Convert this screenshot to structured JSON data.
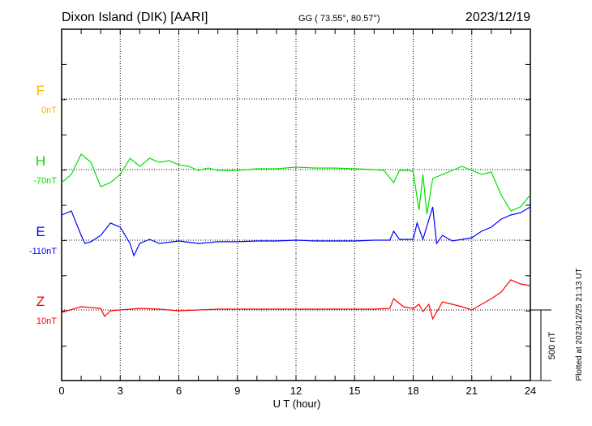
{
  "header": {
    "station": "Dixon Island (DIK)  [AARI]",
    "coords": "GG ( 73.55°,  80.57°)",
    "date": "2023/12/19"
  },
  "footer": {
    "plotted": "Plotted at 2023/12/25 21:13 UT",
    "scale_label": "500 nT"
  },
  "chart_data": {
    "type": "line",
    "xlabel": "U T (hour)",
    "xlim": [
      0,
      24
    ],
    "xticks": [
      "0",
      "3",
      "6",
      "9",
      "12",
      "15",
      "18",
      "21",
      "24"
    ],
    "scale_bar_nT": 500,
    "series": [
      {
        "name": "F",
        "baseline_label": "0nT",
        "color": "#ffb000",
        "x": [],
        "values": []
      },
      {
        "name": "H",
        "baseline_label": "-70nT",
        "color": "#00e000",
        "x": [
          0,
          0.5,
          1,
          1.5,
          2,
          2.5,
          3,
          3.5,
          4,
          4.5,
          5,
          5.5,
          6,
          6.5,
          7,
          7.5,
          8,
          9,
          10,
          11,
          12,
          13,
          14,
          15,
          16,
          16.5,
          17,
          17.3,
          17.8,
          18,
          18.3,
          18.5,
          18.7,
          19,
          19.5,
          20,
          20.5,
          21,
          21.5,
          22,
          22.5,
          23,
          23.5,
          24
        ],
        "values": [
          -92,
          -34,
          109,
          52,
          -121,
          -92,
          -34,
          80,
          23,
          80,
          52,
          63,
          34,
          23,
          -6,
          11,
          -6,
          -6,
          6,
          6,
          17,
          11,
          11,
          6,
          0,
          -6,
          -92,
          -6,
          -6,
          -17,
          -287,
          -34,
          -316,
          -63,
          -34,
          -6,
          23,
          -6,
          -34,
          -17,
          -178,
          -293,
          -264,
          -178
        ]
      },
      {
        "name": "E",
        "baseline_label": "-110nT",
        "color": "#0000ff",
        "x": [
          0,
          0.5,
          1,
          1.2,
          1.5,
          2,
          2.5,
          3,
          3.5,
          3.7,
          4,
          4.5,
          5,
          6,
          7,
          8,
          9,
          10,
          11,
          12,
          13,
          14,
          15,
          16,
          16.8,
          17,
          17.3,
          18,
          18.2,
          18.5,
          19,
          19.2,
          19.5,
          20,
          20.5,
          21,
          21.5,
          22,
          22.5,
          23,
          23.5,
          24
        ],
        "values": [
          178,
          207,
          34,
          -23,
          -11,
          34,
          121,
          92,
          -23,
          -109,
          -23,
          6,
          -23,
          -6,
          -23,
          -11,
          -11,
          -6,
          -6,
          0,
          -6,
          -6,
          -6,
          0,
          0,
          63,
          6,
          6,
          121,
          6,
          236,
          -23,
          34,
          -6,
          6,
          17,
          63,
          92,
          149,
          178,
          195,
          236
        ]
      },
      {
        "name": "Z",
        "baseline_label": "10nT",
        "color": "#ff0000",
        "x": [
          0,
          1,
          2,
          2.2,
          2.5,
          3,
          4,
          5,
          6,
          7,
          8,
          10,
          12,
          14,
          16,
          16.8,
          17,
          17.5,
          18,
          18.3,
          18.5,
          18.8,
          19,
          19.5,
          20,
          20.5,
          21,
          21.5,
          22,
          22.5,
          23,
          23.5,
          24
        ],
        "values": [
          -17,
          23,
          11,
          -46,
          -6,
          0,
          11,
          6,
          -6,
          0,
          6,
          6,
          6,
          6,
          6,
          11,
          80,
          23,
          11,
          40,
          -11,
          40,
          -63,
          57,
          40,
          23,
          0,
          40,
          80,
          126,
          213,
          184,
          172
        ]
      }
    ]
  }
}
